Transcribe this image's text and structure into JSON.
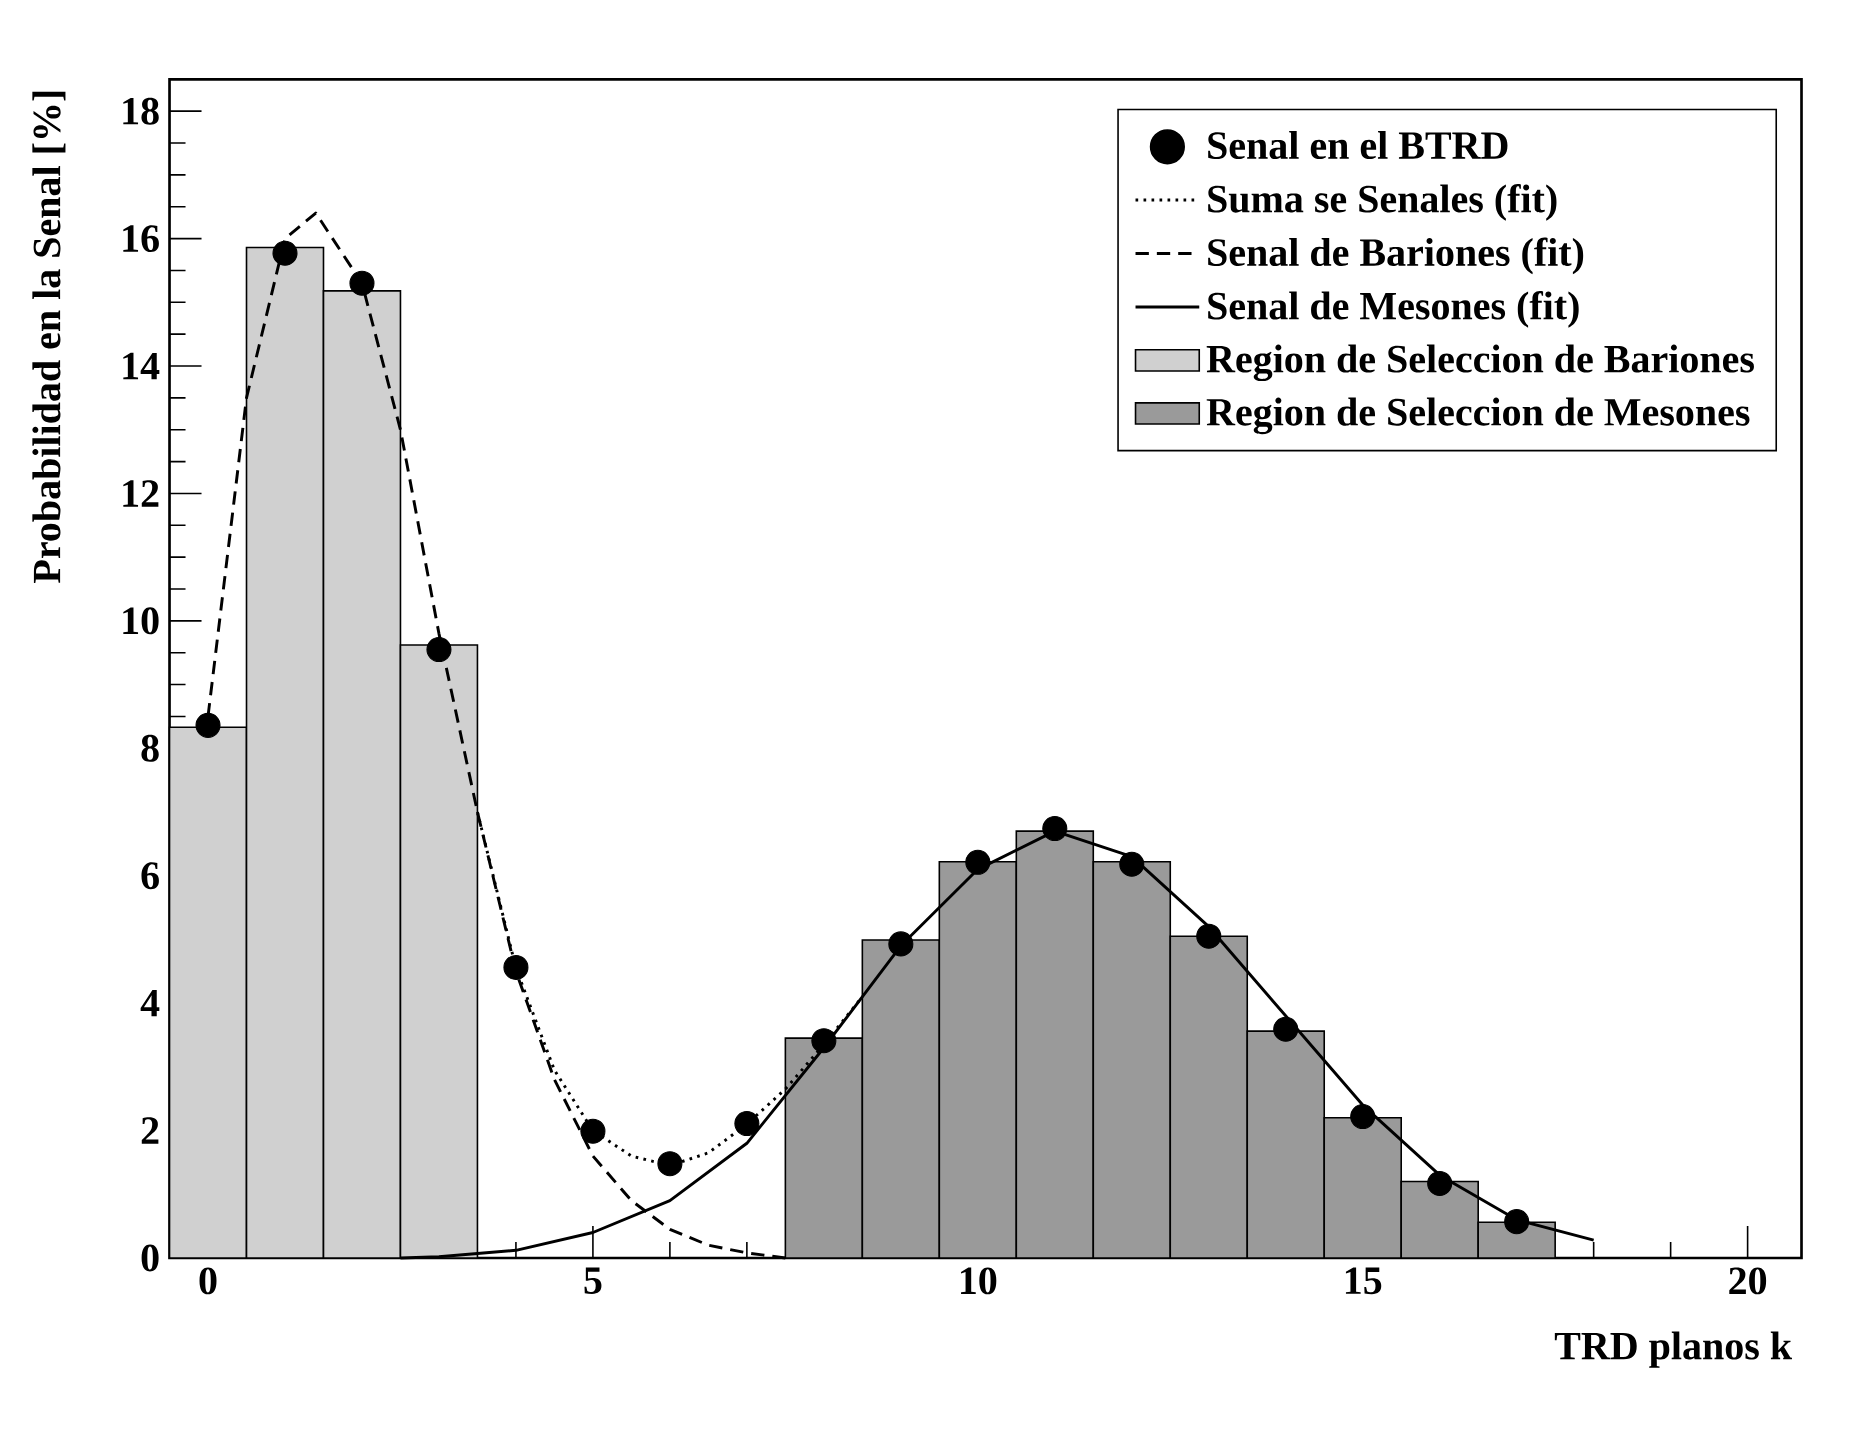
{
  "chart_data": {
    "type": "bar",
    "xlabel": "TRD planos k",
    "ylabel": "Probabilidad en la Senal [%]",
    "xlim": [
      -0.5,
      20.7
    ],
    "ylim": [
      0,
      18.5
    ],
    "xticks": [
      0,
      5,
      10,
      15,
      20
    ],
    "yticks": [
      0,
      2,
      4,
      6,
      8,
      10,
      12,
      14,
      16,
      18
    ],
    "grid": false,
    "legend": "top right",
    "series": [
      {
        "name": "Senal en el BTRD",
        "type": "scatter",
        "marker": "circle",
        "color": "#000000",
        "x": [
          0,
          1,
          2,
          3,
          4,
          5,
          6,
          7,
          8,
          9,
          10,
          11,
          12,
          13,
          14,
          15,
          16,
          17
        ],
        "values": [
          8.36,
          15.77,
          15.3,
          9.55,
          4.56,
          1.99,
          1.48,
          2.11,
          3.41,
          4.93,
          6.21,
          6.74,
          6.18,
          5.05,
          3.59,
          2.22,
          1.17,
          0.57
        ]
      },
      {
        "name": "Suma se Senales (fit)",
        "type": "line",
        "line_style": "dotted",
        "color": "#000000",
        "x": [
          3.5,
          4,
          4.5,
          5,
          5.5,
          6,
          6.5,
          7,
          7.5,
          8,
          8.5
        ],
        "values": [
          7.0,
          4.55,
          2.95,
          2.0,
          1.6,
          1.45,
          1.65,
          2.1,
          2.65,
          3.35,
          4.1
        ]
      },
      {
        "name": "Senal de Bariones (fit)",
        "type": "line",
        "line_style": "dashed",
        "color": "#000000",
        "x": [
          0,
          0.5,
          1,
          1.4,
          2,
          2.5,
          3,
          3.5,
          4,
          4.5,
          5,
          5.5,
          6,
          6.5,
          7,
          7.5
        ],
        "values": [
          8.5,
          13.5,
          16.0,
          16.4,
          15.3,
          13.0,
          9.8,
          7.0,
          4.5,
          2.8,
          1.6,
          0.9,
          0.45,
          0.2,
          0.08,
          0.0
        ]
      },
      {
        "name": "Senal de Mesones (fit)",
        "type": "line",
        "line_style": "solid",
        "color": "#000000",
        "x": [
          2.5,
          3,
          4,
          5,
          6,
          7,
          8,
          9,
          10,
          11,
          12,
          13,
          14,
          15,
          16,
          17,
          18
        ],
        "values": [
          0.0,
          0.02,
          0.12,
          0.4,
          0.9,
          1.8,
          3.3,
          4.9,
          6.1,
          6.7,
          6.3,
          5.2,
          3.8,
          2.4,
          1.3,
          0.6,
          0.28
        ]
      },
      {
        "name": "Region de Seleccion de Bariones",
        "color": "#d0d0d0",
        "x": [
          0,
          1,
          2,
          3
        ],
        "values": [
          8.33,
          15.86,
          15.18,
          9.62
        ]
      },
      {
        "name": "Region de Seleccion de Mesones",
        "color": "#9a9a9a",
        "x": [
          8,
          9,
          10,
          11,
          12,
          13,
          14,
          15,
          16,
          17
        ],
        "values": [
          3.45,
          4.99,
          6.22,
          6.7,
          6.22,
          5.05,
          3.56,
          2.2,
          1.2,
          0.56
        ]
      }
    ]
  }
}
